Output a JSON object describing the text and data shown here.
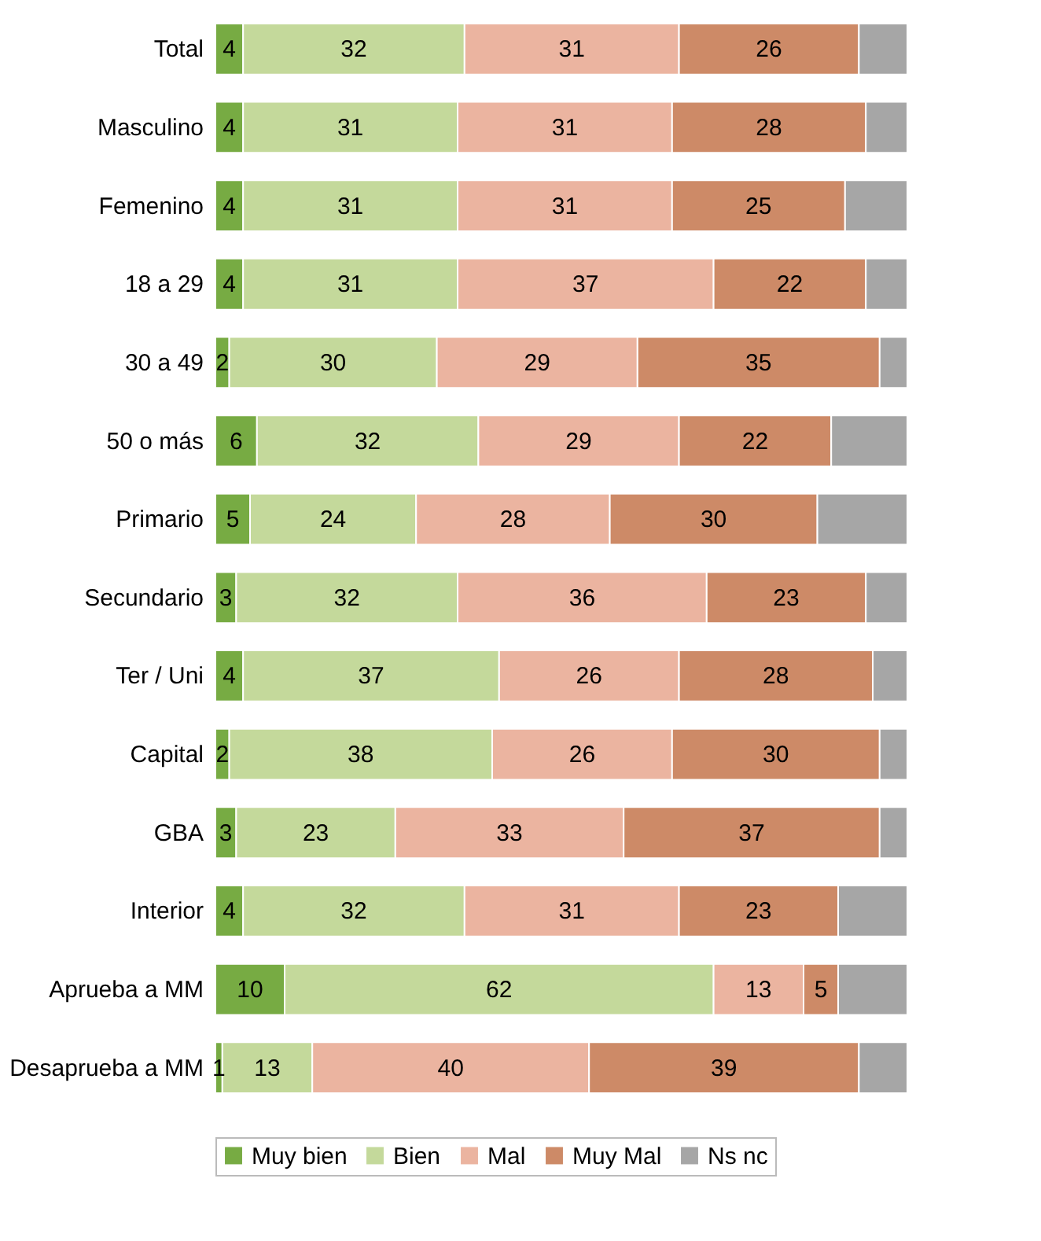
{
  "chart_data": {
    "type": "bar",
    "orientation": "horizontal",
    "stacked": true,
    "legend": "bottom",
    "grid": false,
    "tick_labels": "y",
    "categories": [
      "Total",
      "Masculino",
      "Femenino",
      "18 a 29",
      "30 a 49",
      "50 o más",
      "Primario",
      "Secundario",
      "Ter / Uni",
      "Capital",
      "GBA",
      "Interior",
      "Aprueba a MM",
      "Desaprueba a MM"
    ],
    "series": [
      {
        "name": "Muy bien",
        "color": "#77ab43",
        "values": [
          4,
          4,
          4,
          4,
          2,
          6,
          5,
          3,
          4,
          2,
          3,
          4,
          10,
          1
        ],
        "value_labels": [
          "4",
          "4",
          "4",
          "4",
          "2",
          "6",
          "5",
          "3",
          "4",
          "2",
          "3",
          "4",
          "10",
          "1"
        ]
      },
      {
        "name": "Bien",
        "color": "#c4d99b",
        "values": [
          32,
          31,
          31,
          31,
          30,
          32,
          24,
          32,
          37,
          38,
          23,
          32,
          62,
          13
        ],
        "value_labels": [
          "32",
          "31",
          "31",
          "31",
          "30",
          "32",
          "24",
          "32",
          "37",
          "38",
          "23",
          "32",
          "62",
          "13"
        ]
      },
      {
        "name": "Mal",
        "color": "#ebb4a0",
        "values": [
          31,
          31,
          31,
          37,
          29,
          29,
          28,
          36,
          26,
          26,
          33,
          31,
          13,
          40
        ],
        "value_labels": [
          "31",
          "31",
          "31",
          "37",
          "29",
          "29",
          "28",
          "36",
          "26",
          "26",
          "33",
          "31",
          "13",
          "40"
        ]
      },
      {
        "name": "Muy Mal",
        "color": "#cd8a67",
        "values": [
          26,
          28,
          25,
          22,
          35,
          22,
          30,
          23,
          28,
          30,
          37,
          23,
          5,
          39
        ],
        "value_labels": [
          "26",
          "28",
          "25",
          "22",
          "35",
          "22",
          "30",
          "23",
          "28",
          "30",
          "37",
          "23",
          "5",
          "39"
        ]
      },
      {
        "name": "Ns nc",
        "color": "#a6a6a6",
        "values": [
          7,
          6,
          9,
          6,
          4,
          11,
          13,
          6,
          5,
          4,
          4,
          10,
          10,
          7
        ],
        "value_labels": [
          null,
          null,
          null,
          null,
          null,
          null,
          null,
          null,
          null,
          null,
          null,
          null,
          null,
          null
        ]
      }
    ]
  }
}
